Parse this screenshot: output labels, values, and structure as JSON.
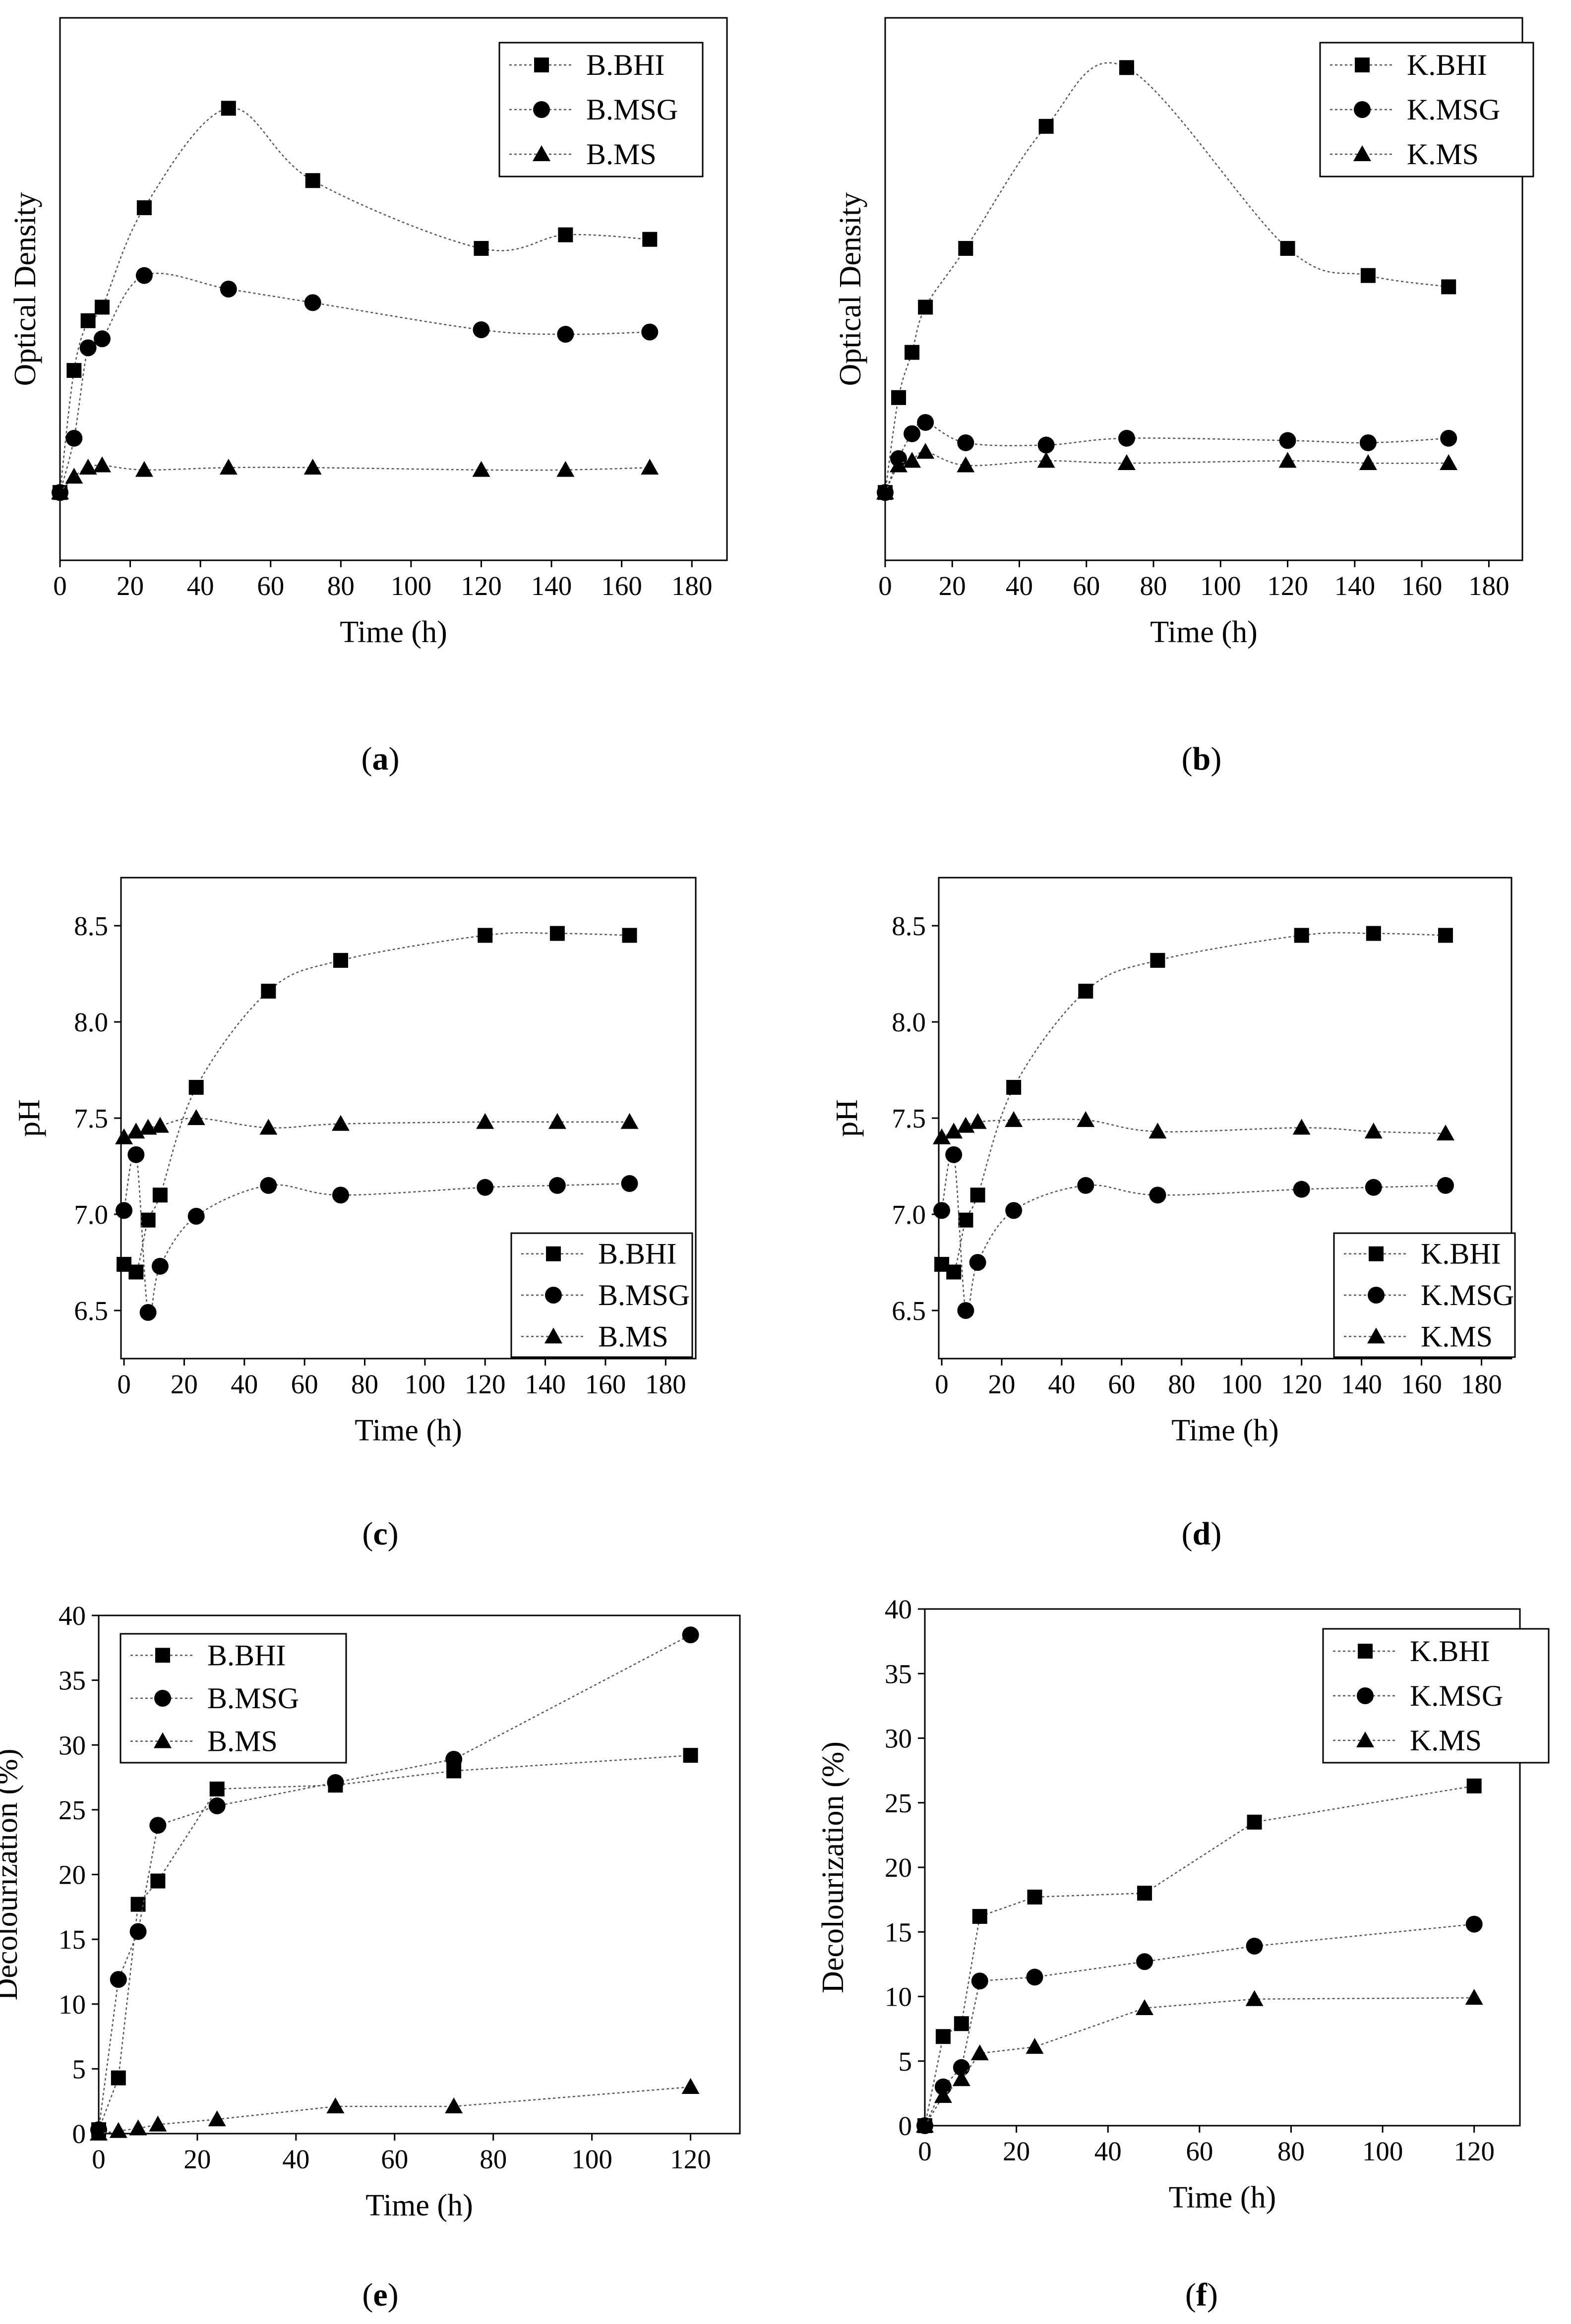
{
  "chart_data": [
    {
      "id": "a",
      "type": "line",
      "caption_letter": "a",
      "xlabel": "Time (h)",
      "ylabel": "Optical Density",
      "xlim": [
        0,
        190
      ],
      "ylim": [
        -0.15,
        1.05
      ],
      "xticks": [
        0,
        20,
        40,
        60,
        80,
        100,
        120,
        140,
        160,
        180
      ],
      "yticks": [],
      "legend_position": "top-right",
      "series": [
        {
          "name": "B.BHI",
          "marker": "square",
          "x": [
            0,
            4,
            8,
            12,
            24,
            48,
            72,
            120,
            144,
            168
          ],
          "y": [
            0.0,
            0.27,
            0.38,
            0.41,
            0.63,
            0.85,
            0.69,
            0.54,
            0.57,
            0.56
          ]
        },
        {
          "name": "B.MSG",
          "marker": "circle",
          "x": [
            0,
            4,
            8,
            12,
            24,
            48,
            72,
            120,
            144,
            168
          ],
          "y": [
            0.0,
            0.12,
            0.32,
            0.34,
            0.48,
            0.45,
            0.42,
            0.36,
            0.35,
            0.355
          ]
        },
        {
          "name": "B.MS",
          "marker": "triangle",
          "x": [
            0,
            4,
            8,
            12,
            24,
            48,
            72,
            120,
            144,
            168
          ],
          "y": [
            0.0,
            0.035,
            0.055,
            0.06,
            0.05,
            0.055,
            0.055,
            0.05,
            0.05,
            0.055
          ]
        }
      ]
    },
    {
      "id": "b",
      "type": "line",
      "caption_letter": "b",
      "xlabel": "Time (h)",
      "ylabel": "Optical Density",
      "xlim": [
        0,
        190
      ],
      "ylim": [
        -0.15,
        1.05
      ],
      "xticks": [
        0,
        20,
        40,
        60,
        80,
        100,
        120,
        140,
        160,
        180
      ],
      "yticks": [],
      "legend_position": "top-right",
      "series": [
        {
          "name": "K.BHI",
          "marker": "square",
          "x": [
            0,
            4,
            8,
            12,
            24,
            48,
            72,
            120,
            144,
            168
          ],
          "y": [
            0.0,
            0.21,
            0.31,
            0.41,
            0.54,
            0.81,
            0.94,
            0.54,
            0.48,
            0.455
          ]
        },
        {
          "name": "K.MSG",
          "marker": "circle",
          "x": [
            0,
            4,
            8,
            12,
            24,
            48,
            72,
            120,
            144,
            168
          ],
          "y": [
            0.0,
            0.075,
            0.13,
            0.155,
            0.11,
            0.105,
            0.12,
            0.115,
            0.11,
            0.12
          ]
        },
        {
          "name": "K.MS",
          "marker": "triangle",
          "x": [
            0,
            4,
            8,
            12,
            24,
            48,
            72,
            120,
            144,
            168
          ],
          "y": [
            0.0,
            0.06,
            0.07,
            0.09,
            0.06,
            0.07,
            0.065,
            0.07,
            0.065,
            0.065
          ]
        }
      ]
    },
    {
      "id": "c",
      "type": "line",
      "caption_letter": "c",
      "xlabel": "Time (h)",
      "ylabel": "pH",
      "xlim": [
        -1,
        190
      ],
      "ylim": [
        6.25,
        8.75
      ],
      "xticks": [
        0,
        20,
        40,
        60,
        80,
        100,
        120,
        140,
        160,
        180
      ],
      "yticks": [
        "6.5",
        "7.0",
        "7.5",
        "8.0",
        "8.5"
      ],
      "legend_position": "bottom-right",
      "series": [
        {
          "name": "B.BHI",
          "marker": "square",
          "x": [
            0,
            4,
            8,
            12,
            24,
            48,
            72,
            120,
            144,
            168
          ],
          "y": [
            6.74,
            6.7,
            6.97,
            7.1,
            7.66,
            8.16,
            8.32,
            8.45,
            8.46,
            8.45
          ]
        },
        {
          "name": "B.MSG",
          "marker": "circle",
          "x": [
            0,
            4,
            8,
            12,
            24,
            48,
            72,
            120,
            144,
            168
          ],
          "y": [
            7.02,
            7.31,
            6.49,
            6.73,
            6.99,
            7.15,
            7.1,
            7.14,
            7.15,
            7.16
          ]
        },
        {
          "name": "B.MS",
          "marker": "triangle",
          "x": [
            0,
            4,
            8,
            12,
            24,
            48,
            72,
            120,
            144,
            168
          ],
          "y": [
            7.4,
            7.43,
            7.45,
            7.46,
            7.5,
            7.45,
            7.47,
            7.48,
            7.48,
            7.48
          ]
        }
      ]
    },
    {
      "id": "d",
      "type": "line",
      "caption_letter": "d",
      "xlabel": "Time (h)",
      "ylabel": "pH",
      "xlim": [
        -1,
        190
      ],
      "ylim": [
        6.25,
        8.75
      ],
      "xticks": [
        0,
        20,
        40,
        60,
        80,
        100,
        120,
        140,
        160,
        180
      ],
      "yticks": [
        "6.5",
        "7.0",
        "7.5",
        "8.0",
        "8.5"
      ],
      "legend_position": "bottom-right",
      "series": [
        {
          "name": "K.BHI",
          "marker": "square",
          "x": [
            0,
            4,
            8,
            12,
            24,
            48,
            72,
            120,
            144,
            168
          ],
          "y": [
            6.74,
            6.7,
            6.97,
            7.1,
            7.66,
            8.16,
            8.32,
            8.45,
            8.46,
            8.45
          ]
        },
        {
          "name": "K.MSG",
          "marker": "circle",
          "x": [
            0,
            4,
            8,
            12,
            24,
            48,
            72,
            120,
            144,
            168
          ],
          "y": [
            7.02,
            7.31,
            6.5,
            6.75,
            7.02,
            7.15,
            7.1,
            7.13,
            7.14,
            7.15
          ]
        },
        {
          "name": "K.MS",
          "marker": "triangle",
          "x": [
            0,
            4,
            8,
            12,
            24,
            48,
            72,
            120,
            144,
            168
          ],
          "y": [
            7.4,
            7.43,
            7.46,
            7.48,
            7.49,
            7.49,
            7.43,
            7.45,
            7.43,
            7.42
          ]
        }
      ]
    },
    {
      "id": "e",
      "type": "line",
      "caption_letter": "e",
      "xlabel": "Time (h)",
      "ylabel": "Decolourization (%)",
      "xlim": [
        0,
        130
      ],
      "ylim": [
        0,
        40
      ],
      "xticks": [
        0,
        20,
        40,
        60,
        80,
        100,
        120
      ],
      "yticks": [
        "0",
        "5",
        "10",
        "15",
        "20",
        "25",
        "30",
        "35",
        "40"
      ],
      "legend_position": "top-left",
      "series": [
        {
          "name": "B.BHI",
          "marker": "square",
          "x": [
            0,
            4,
            8,
            12,
            24,
            48,
            72,
            120
          ],
          "y": [
            0.3,
            4.3,
            17.7,
            19.5,
            26.6,
            26.9,
            28.0,
            29.2
          ]
        },
        {
          "name": "B.MSG",
          "marker": "circle",
          "x": [
            0,
            4,
            8,
            12,
            24,
            48,
            72,
            120
          ],
          "y": [
            0.3,
            11.9,
            15.6,
            23.8,
            25.3,
            27.1,
            28.9,
            38.5
          ]
        },
        {
          "name": "B.MS",
          "marker": "triangle",
          "x": [
            0,
            4,
            8,
            12,
            24,
            48,
            72,
            120
          ],
          "y": [
            0.0,
            0.2,
            0.4,
            0.7,
            1.1,
            2.1,
            2.1,
            3.6
          ]
        }
      ]
    },
    {
      "id": "f",
      "type": "line",
      "caption_letter": "f",
      "xlabel": "Time (h)",
      "ylabel": "Decolourization (%)",
      "xlim": [
        0,
        130
      ],
      "ylim": [
        0,
        40
      ],
      "xticks": [
        0,
        20,
        40,
        60,
        80,
        100,
        120
      ],
      "yticks": [
        "0",
        "5",
        "10",
        "15",
        "20",
        "25",
        "30",
        "35",
        "40"
      ],
      "legend_position": "top-right",
      "series": [
        {
          "name": "K.BHI",
          "marker": "square",
          "x": [
            0,
            4,
            8,
            12,
            24,
            48,
            72,
            120
          ],
          "y": [
            0.0,
            6.9,
            7.9,
            16.2,
            17.7,
            18.0,
            23.5,
            26.3
          ]
        },
        {
          "name": "K.MSG",
          "marker": "circle",
          "x": [
            0,
            4,
            8,
            12,
            24,
            48,
            72,
            120
          ],
          "y": [
            0.0,
            3.0,
            4.5,
            11.2,
            11.5,
            12.7,
            13.9,
            15.6
          ]
        },
        {
          "name": "K.MS",
          "marker": "triangle",
          "x": [
            0,
            4,
            8,
            12,
            24,
            48,
            72,
            120
          ],
          "y": [
            0.0,
            2.3,
            3.6,
            5.6,
            6.1,
            9.1,
            9.8,
            9.9
          ]
        }
      ]
    }
  ]
}
